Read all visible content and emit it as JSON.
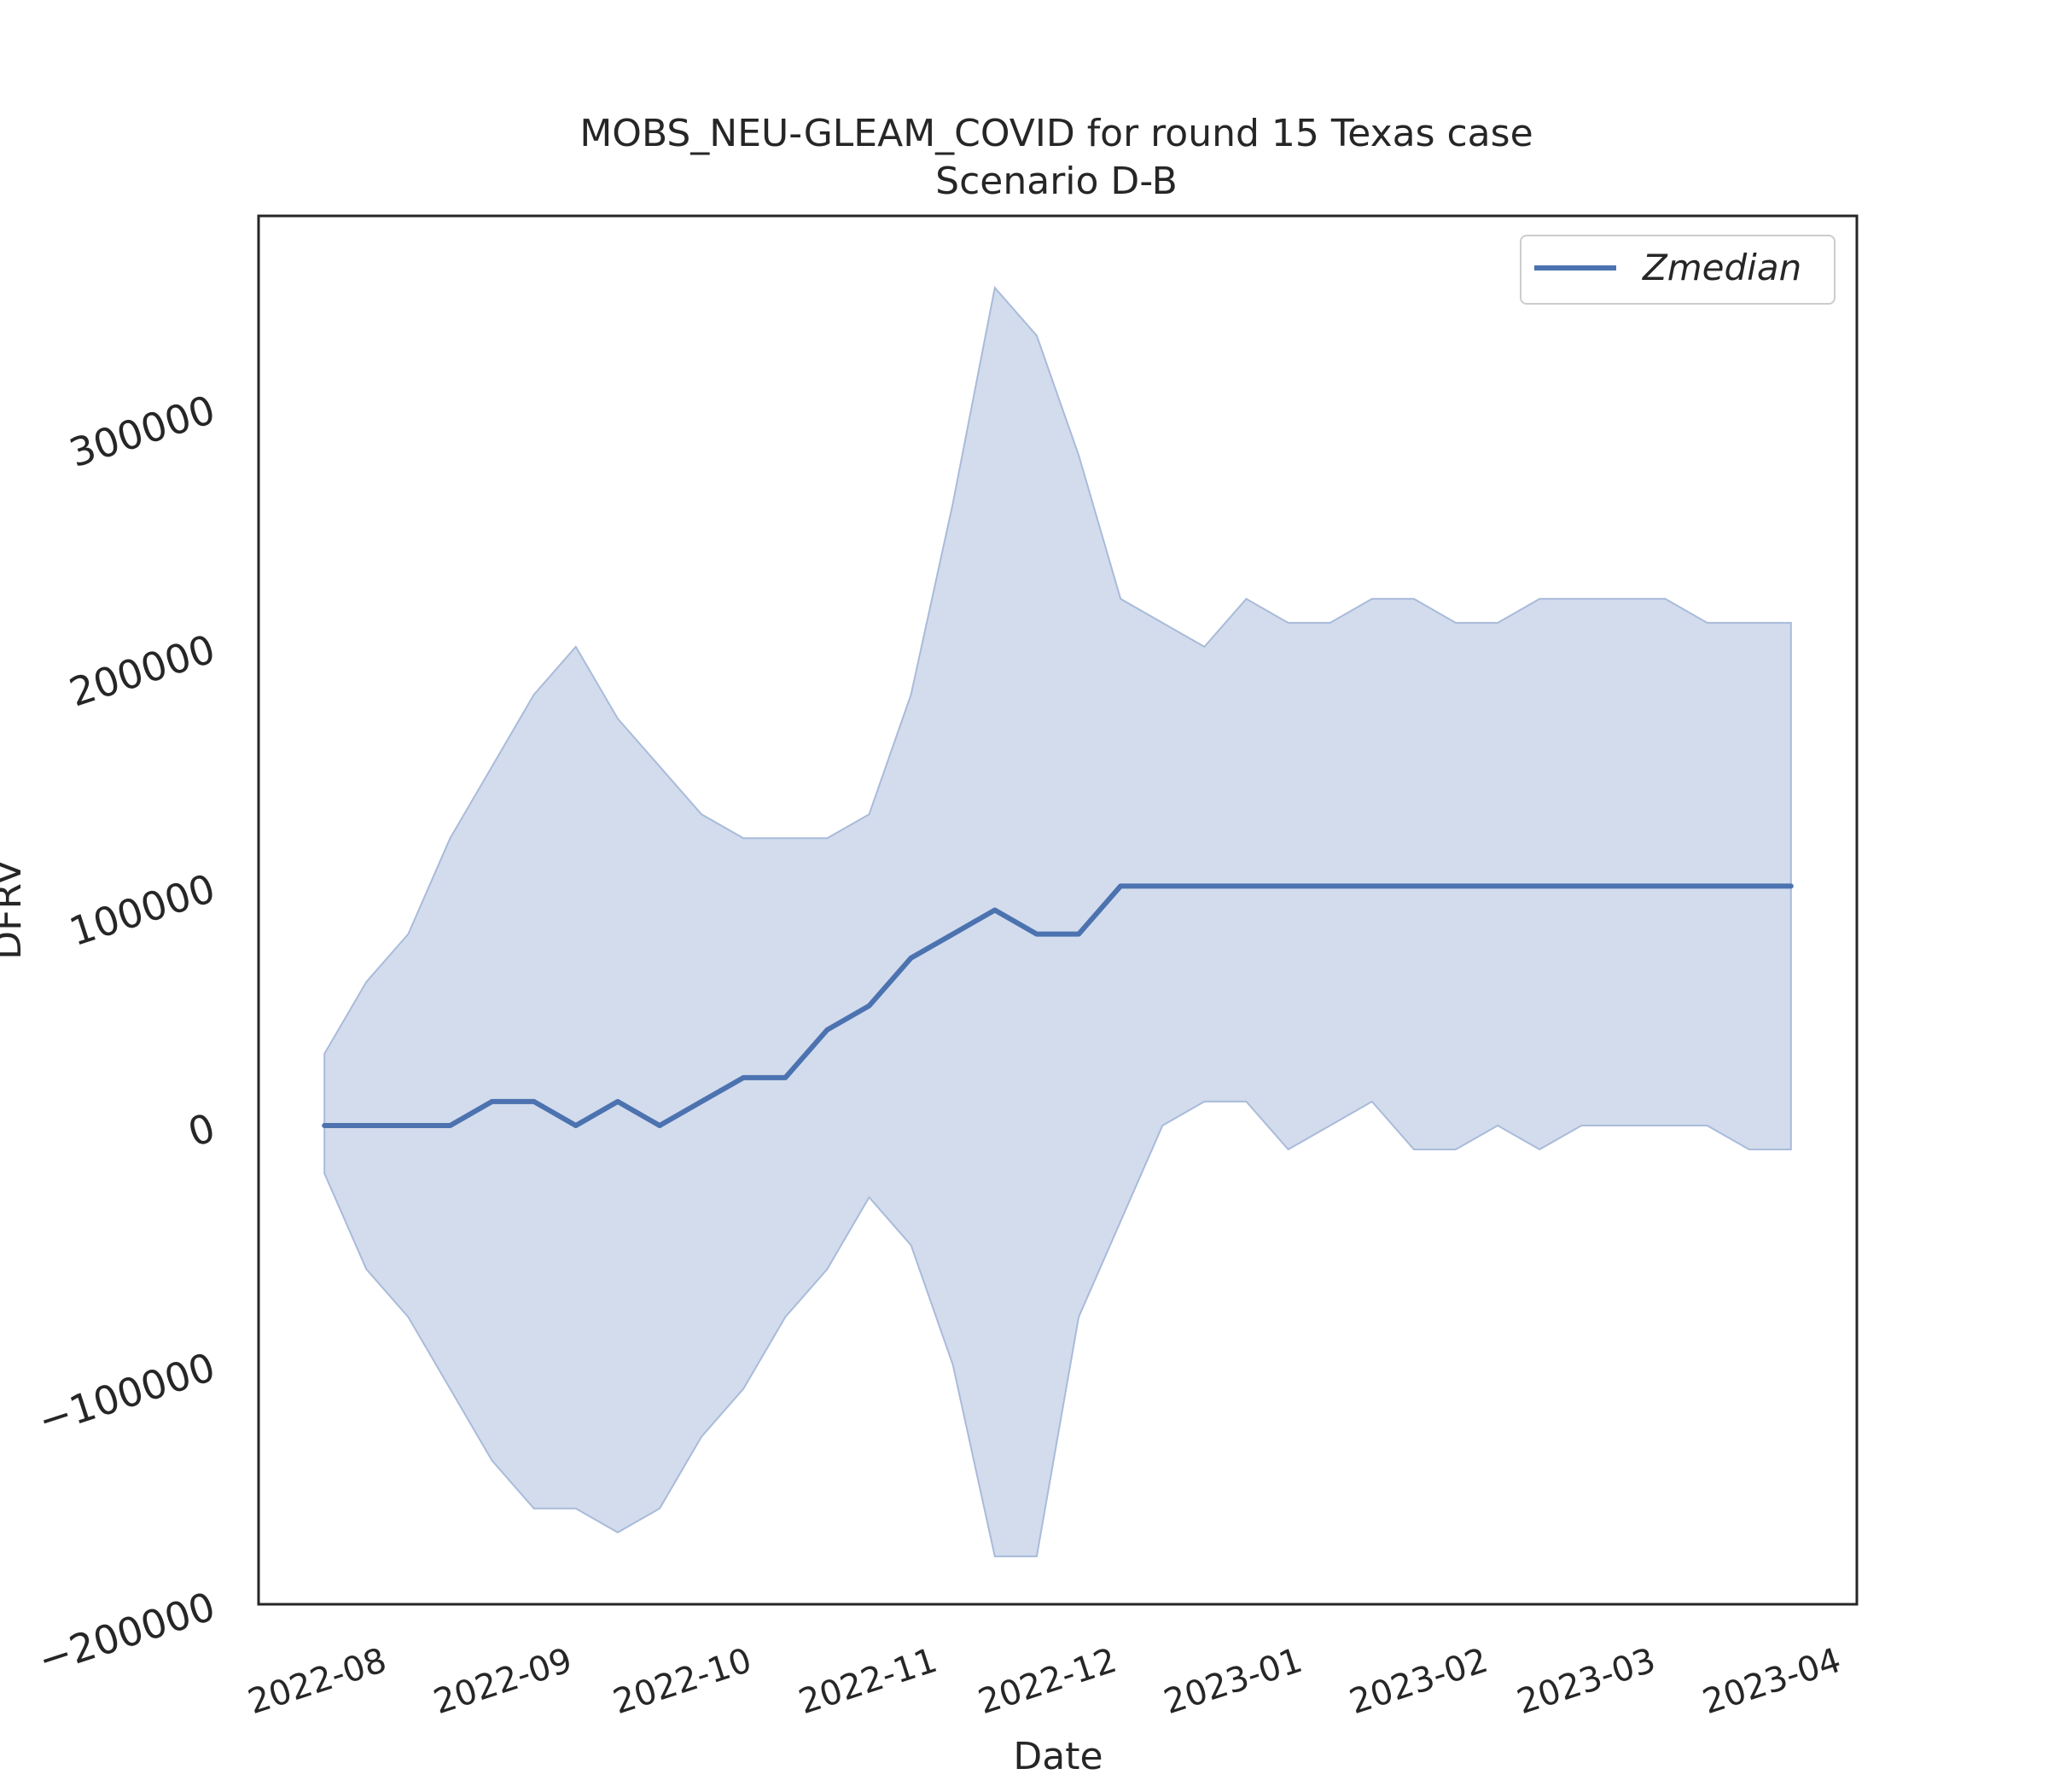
{
  "chart_data": {
    "type": "line",
    "title": "MOBS_NEU-GLEAM_COVID for round 15 Texas case",
    "subtitle": "Scenario D-B",
    "xlabel": "Date",
    "ylabel": "DFRV",
    "x_tick_labels": [
      "2022-08",
      "2022-09",
      "2022-10",
      "2022-11",
      "2022-12",
      "2023-01",
      "2023-02",
      "2023-03",
      "2023-04"
    ],
    "y_tick_labels": [
      "−200000",
      "−100000",
      "0",
      "100000",
      "200000",
      "300000"
    ],
    "ylim": [
      -200000,
      380000
    ],
    "xlim": [
      "2022-07-12",
      "2023-04-05"
    ],
    "grid": false,
    "legend_position": "top-right",
    "colors": {
      "line": "#4c72b0",
      "band": "#c3d0e6",
      "band_edge": "#a9bbda"
    },
    "x": [
      "2022-07-23",
      "2022-07-30",
      "2022-08-06",
      "2022-08-13",
      "2022-08-20",
      "2022-08-27",
      "2022-09-03",
      "2022-09-10",
      "2022-09-17",
      "2022-09-24",
      "2022-10-01",
      "2022-10-08",
      "2022-10-15",
      "2022-10-22",
      "2022-10-29",
      "2022-11-05",
      "2022-11-12",
      "2022-11-19",
      "2022-11-26",
      "2022-12-03",
      "2022-12-10",
      "2022-12-17",
      "2022-12-24",
      "2022-12-31",
      "2023-01-07",
      "2023-01-14",
      "2023-01-21",
      "2023-01-28",
      "2023-02-04",
      "2023-02-11",
      "2023-02-18",
      "2023-02-25",
      "2023-03-04",
      "2023-03-11",
      "2023-03-18",
      "2023-03-25"
    ],
    "series": [
      {
        "name": "Zmedian",
        "values": [
          0,
          0,
          0,
          0,
          10000,
          10000,
          0,
          10000,
          0,
          10000,
          20000,
          20000,
          40000,
          50000,
          70000,
          80000,
          90000,
          80000,
          80000,
          100000,
          100000,
          100000,
          100000,
          100000,
          100000,
          100000,
          100000,
          100000,
          100000,
          100000,
          100000,
          100000,
          100000,
          100000,
          100000,
          100000
        ]
      }
    ],
    "band": {
      "upper": [
        30000,
        60000,
        80000,
        120000,
        150000,
        180000,
        200000,
        170000,
        150000,
        130000,
        120000,
        120000,
        120000,
        130000,
        180000,
        260000,
        350000,
        330000,
        280000,
        220000,
        210000,
        200000,
        220000,
        210000,
        210000,
        220000,
        220000,
        210000,
        210000,
        220000,
        220000,
        220000,
        220000,
        210000,
        210000,
        210000
      ],
      "lower": [
        -20000,
        -60000,
        -80000,
        -110000,
        -140000,
        -160000,
        -160000,
        -170000,
        -160000,
        -130000,
        -110000,
        -80000,
        -60000,
        -30000,
        -50000,
        -100000,
        -180000,
        -180000,
        -80000,
        -40000,
        0,
        10000,
        10000,
        -10000,
        0,
        10000,
        -10000,
        -10000,
        0,
        -10000,
        0,
        0,
        0,
        0,
        -10000,
        -10000
      ]
    }
  }
}
